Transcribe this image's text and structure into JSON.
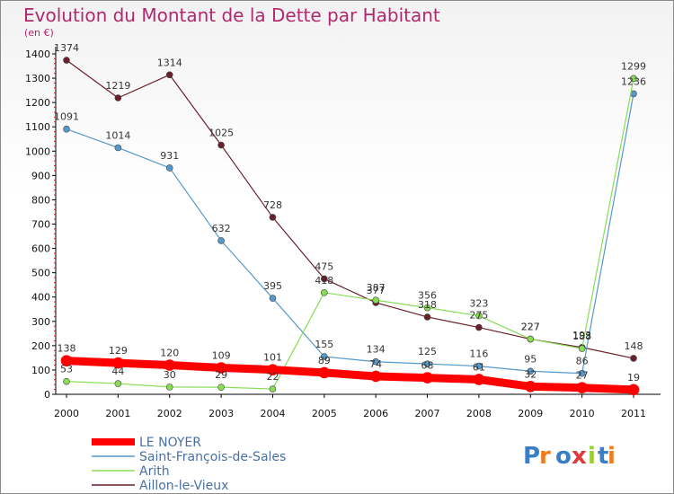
{
  "chart_data": {
    "type": "line",
    "title": "Evolution du Montant de la Dette par Habitant",
    "unit": "(en €)",
    "x": [
      "2000",
      "2001",
      "2002",
      "2003",
      "2004",
      "2005",
      "2006",
      "2007",
      "2008",
      "2009",
      "2010",
      "2011"
    ],
    "ylim": [
      0,
      1400
    ],
    "yticks": [
      0,
      100,
      200,
      300,
      400,
      500,
      600,
      700,
      800,
      900,
      1000,
      1100,
      1200,
      1300,
      1400
    ],
    "grid": false,
    "legend_position": "bottom-left",
    "series": [
      {
        "name": "LE NOYER",
        "color": "#ff0000",
        "values": [
          138,
          129,
          120,
          109,
          101,
          89,
          74,
          68,
          61,
          32,
          27,
          19
        ]
      },
      {
        "name": "Saint-François-de-Sales",
        "color": "#5599cc",
        "values": [
          1091,
          1014,
          931,
          632,
          395,
          155,
          134,
          125,
          116,
          95,
          86,
          1236
        ]
      },
      {
        "name": "Arith",
        "color": "#88dd55",
        "values": [
          53,
          44,
          30,
          29,
          22,
          418,
          387,
          356,
          323,
          227,
          188,
          1299
        ]
      },
      {
        "name": "Aillon-le-Vieux",
        "color": "#6b1f2a",
        "values": [
          1374,
          1219,
          1314,
          1025,
          728,
          475,
          377,
          318,
          275,
          227,
          193,
          148
        ]
      }
    ],
    "logo": "Proxiti"
  }
}
